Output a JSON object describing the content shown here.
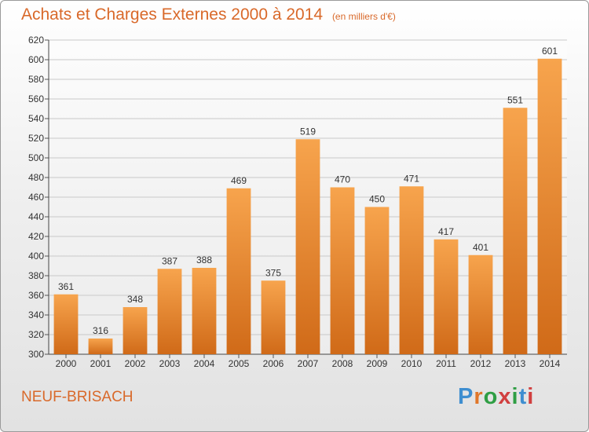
{
  "header": {
    "title": "Achats et Charges Externes 2000 à 2014",
    "subtitle": "(en milliers d'€)"
  },
  "footer": {
    "city": "NEUF-BRISACH",
    "logo": "Proxiti"
  },
  "colors": {
    "accent": "#d9692a",
    "bar_top": "#f7a44d",
    "bar_bottom": "#d06a18",
    "logo_letters": [
      "#3e8ed0",
      "#e0772a",
      "#2f9e44",
      "#d13f3f",
      "#2f9e44",
      "#3e8ed0",
      "#d13f3f"
    ]
  },
  "chart_data": {
    "type": "bar",
    "title": "Achats et Charges Externes 2000 à 2014",
    "subtitle": "(en milliers d'€)",
    "categories": [
      "2000",
      "2001",
      "2002",
      "2003",
      "2004",
      "2005",
      "2006",
      "2007",
      "2008",
      "2009",
      "2010",
      "2011",
      "2012",
      "2013",
      "2014"
    ],
    "values": [
      361,
      316,
      348,
      387,
      388,
      469,
      375,
      519,
      470,
      450,
      471,
      417,
      401,
      551,
      601
    ],
    "ylim": [
      300,
      620
    ],
    "yticks": [
      300,
      320,
      340,
      360,
      380,
      400,
      420,
      440,
      460,
      480,
      500,
      520,
      540,
      560,
      580,
      600,
      620
    ],
    "grid": true,
    "xlabel": "",
    "ylabel": ""
  }
}
